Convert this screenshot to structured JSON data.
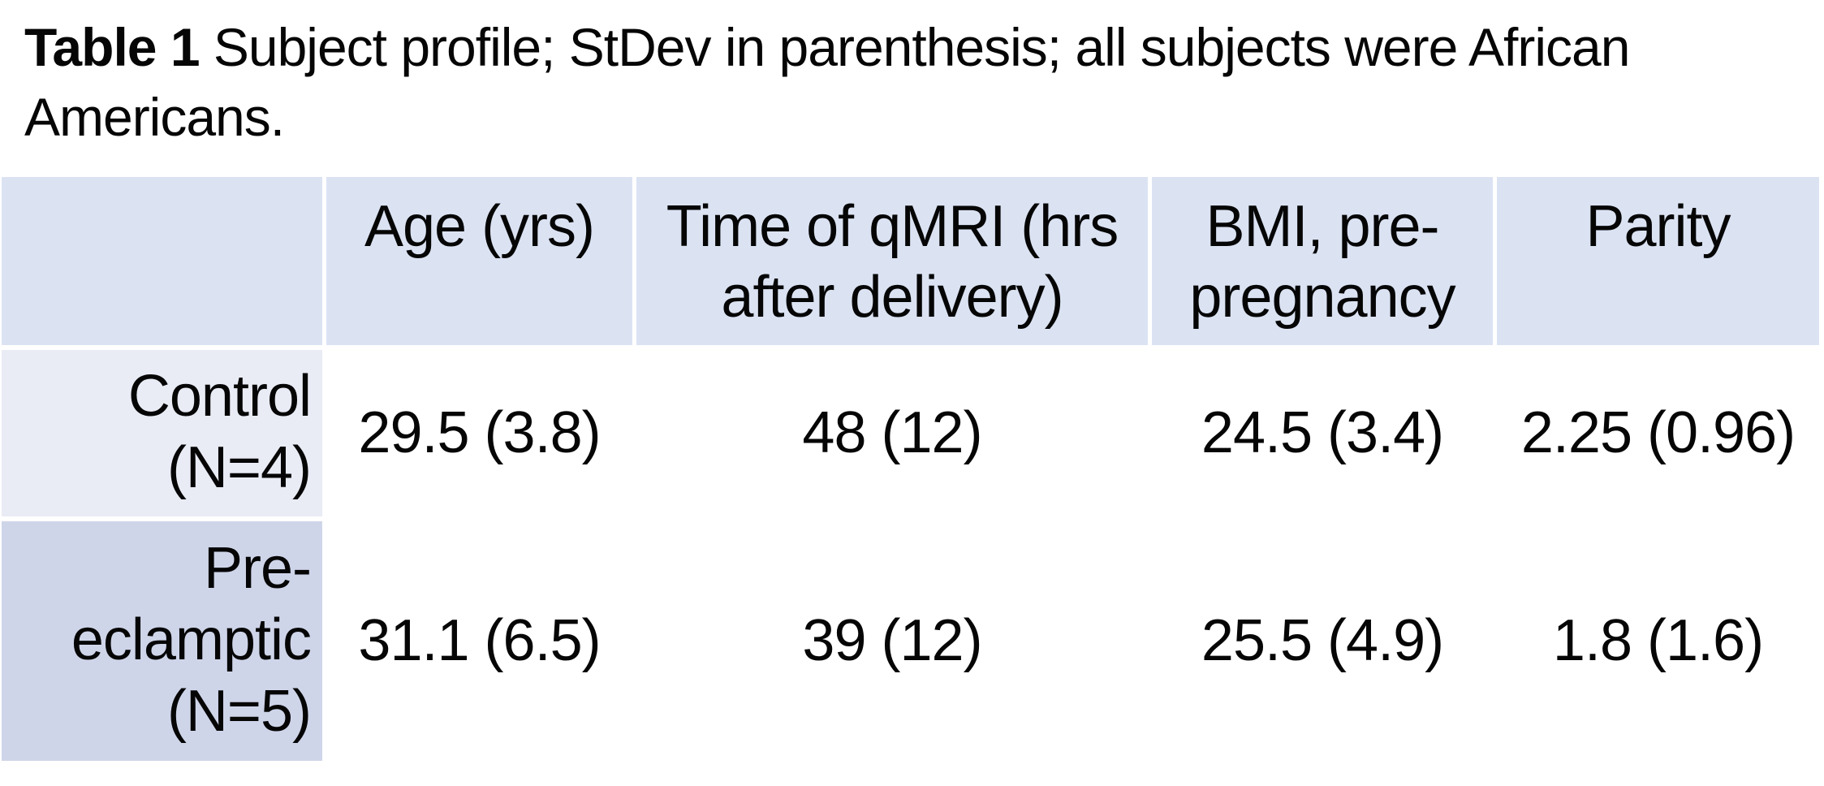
{
  "caption": {
    "label": "Table 1",
    "text": " Subject profile; StDev in parenthesis; all subjects were African Americans."
  },
  "colors": {
    "header_bg": "#dbe3f3",
    "row1_label_bg": "#e9ecf5",
    "row2_label_bg": "#cfd5e9",
    "text": "#060606"
  },
  "table": {
    "columns": [
      "",
      "Age (yrs)",
      "Time of qMRI (hrs after delivery)",
      "BMI, pre-pregnancy",
      "Parity"
    ],
    "rows": [
      {
        "label": "Control (N=4)",
        "values": [
          "29.5 (3.8)",
          "48 (12)",
          "24.5 (3.4)",
          "2.25 (0.96)"
        ]
      },
      {
        "label": "Pre-eclamptic (N=5)",
        "values": [
          "31.1 (6.5)",
          "39 (12)",
          "25.5 (4.9)",
          "1.8 (1.6)"
        ]
      }
    ]
  }
}
